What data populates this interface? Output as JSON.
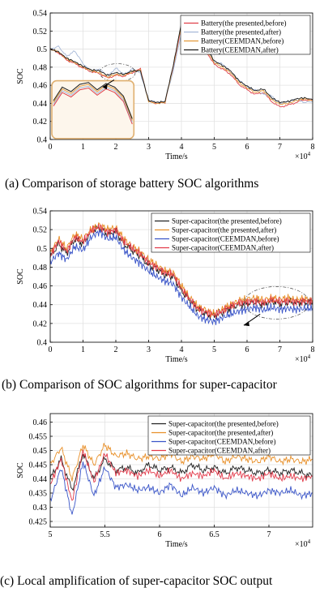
{
  "colors": {
    "battery_presented_before": "#e0404a",
    "battery_presented_after": "#a6b8d8",
    "battery_ceemdan_before": "#e39a3a",
    "battery_ceemdan_after": "#1a1a1a",
    "sc_presented_before": "#222222",
    "sc_presented_after": "#e8902a",
    "sc_ceemdan_before": "#3a55c8",
    "sc_ceemdan_after": "#e23a4a",
    "inset_border": "#e0b070",
    "inset_fill": "#fdf6ec"
  },
  "chart_data": [
    {
      "type": "line",
      "caption": "(a)   Comparison of storage battery SOC algorithms",
      "xlabel": "Time/s",
      "ylabel": "SOC",
      "xlim": [
        0,
        8
      ],
      "ylim": [
        0.4,
        0.54
      ],
      "x_multiplier": "×10^4",
      "x_multiplier_base": "×10",
      "x_multiplier_exp": "4",
      "xticks": [
        "0",
        "1",
        "2",
        "3",
        "4",
        "5",
        "6",
        "7",
        "8"
      ],
      "yticks": [
        "0.4",
        "0.42",
        "0.44",
        "0.46",
        "0.48",
        "0.5",
        "0.52",
        "0.54"
      ],
      "legend_position": "top-right",
      "grid": true,
      "x": [
        0,
        0.25,
        0.5,
        0.75,
        1.0,
        1.25,
        1.5,
        1.75,
        2.0,
        2.25,
        2.5,
        2.75,
        3.0,
        3.25,
        3.5,
        3.75,
        4.0,
        4.25,
        4.5,
        4.75,
        5.0,
        5.25,
        5.5,
        5.75,
        6.0,
        6.25,
        6.5,
        6.75,
        7.0,
        7.25,
        7.5,
        7.75,
        8.0
      ],
      "series": [
        {
          "name": "Battery(the presented,before)",
          "color_key": "battery_presented_before",
          "values": [
            0.5,
            0.496,
            0.488,
            0.484,
            0.479,
            0.475,
            0.473,
            0.468,
            0.471,
            0.47,
            0.474,
            0.478,
            0.442,
            0.44,
            0.441,
            0.48,
            0.525,
            0.52,
            0.51,
            0.498,
            0.483,
            0.478,
            0.472,
            0.461,
            0.455,
            0.45,
            0.452,
            0.442,
            0.436,
            0.438,
            0.441,
            0.444,
            0.443
          ]
        },
        {
          "name": "Battery(the presented,after)",
          "color_key": "battery_presented_after",
          "values": [
            0.5,
            0.503,
            0.492,
            0.498,
            0.484,
            0.475,
            0.478,
            0.47,
            0.479,
            0.472,
            0.478,
            0.473,
            0.444,
            0.441,
            0.442,
            0.476,
            0.518,
            0.51,
            0.5,
            0.505,
            0.485,
            0.484,
            0.474,
            0.466,
            0.458,
            0.455,
            0.45,
            0.448,
            0.44,
            0.442,
            0.444,
            0.441,
            0.442
          ]
        },
        {
          "name": "Battery(CEEMDAN,before)",
          "color_key": "battery_ceemdan_before",
          "values": [
            0.5,
            0.497,
            0.489,
            0.485,
            0.48,
            0.476,
            0.474,
            0.469,
            0.472,
            0.471,
            0.475,
            0.477,
            0.442,
            0.44,
            0.441,
            0.481,
            0.527,
            0.521,
            0.511,
            0.5,
            0.485,
            0.48,
            0.474,
            0.463,
            0.457,
            0.452,
            0.454,
            0.444,
            0.439,
            0.44,
            0.443,
            0.445,
            0.443
          ]
        },
        {
          "name": "Battery(CEEMDAN,after)",
          "color_key": "battery_ceemdan_after",
          "values": [
            0.5,
            0.497,
            0.49,
            0.486,
            0.481,
            0.477,
            0.476,
            0.471,
            0.474,
            0.472,
            0.476,
            0.476,
            0.443,
            0.441,
            0.442,
            0.482,
            0.529,
            0.522,
            0.513,
            0.502,
            0.487,
            0.482,
            0.476,
            0.465,
            0.459,
            0.454,
            0.456,
            0.446,
            0.441,
            0.442,
            0.445,
            0.446,
            0.444
          ]
        }
      ]
    },
    {
      "type": "line",
      "caption": "(b)  Comparison of SOC algorithms for super-capacitor",
      "xlabel": "Time/s",
      "ylabel": "SOC",
      "xlim": [
        0,
        8
      ],
      "ylim": [
        0.4,
        0.54
      ],
      "x_multiplier": "×10^4",
      "x_multiplier_base": "×10",
      "x_multiplier_exp": "4",
      "xticks": [
        "0",
        "1",
        "2",
        "3",
        "4",
        "5",
        "6",
        "7",
        "8"
      ],
      "yticks": [
        "0.4",
        "0.42",
        "0.44",
        "0.46",
        "0.48",
        "0.5",
        "0.52",
        "0.54"
      ],
      "legend_position": "top-right",
      "grid": true,
      "x": [
        0,
        0.25,
        0.5,
        0.75,
        1.0,
        1.25,
        1.5,
        1.75,
        2.0,
        2.25,
        2.5,
        2.75,
        3.0,
        3.25,
        3.5,
        3.75,
        4.0,
        4.25,
        4.5,
        4.75,
        5.0,
        5.25,
        5.5,
        5.75,
        6.0,
        6.25,
        6.5,
        6.75,
        7.0,
        7.25,
        7.5,
        7.75,
        8.0
      ],
      "series": [
        {
          "name": "Super-capacitor(the presented,before)",
          "color_key": "sc_presented_before",
          "values": [
            0.49,
            0.505,
            0.495,
            0.51,
            0.505,
            0.518,
            0.522,
            0.515,
            0.518,
            0.505,
            0.498,
            0.492,
            0.482,
            0.478,
            0.472,
            0.47,
            0.455,
            0.445,
            0.435,
            0.43,
            0.428,
            0.432,
            0.437,
            0.44,
            0.441,
            0.443,
            0.44,
            0.444,
            0.441,
            0.443,
            0.442,
            0.443,
            0.442
          ]
        },
        {
          "name": "Super-capacitor(the presented,after)",
          "color_key": "sc_presented_after",
          "values": [
            0.495,
            0.51,
            0.5,
            0.515,
            0.51,
            0.52,
            0.525,
            0.52,
            0.522,
            0.51,
            0.502,
            0.496,
            0.488,
            0.482,
            0.476,
            0.474,
            0.46,
            0.448,
            0.438,
            0.434,
            0.43,
            0.435,
            0.44,
            0.444,
            0.446,
            0.447,
            0.445,
            0.447,
            0.446,
            0.447,
            0.445,
            0.446,
            0.445
          ]
        },
        {
          "name": "Super-capacitor(CEEMDAN,before)",
          "color_key": "sc_ceemdan_before",
          "values": [
            0.485,
            0.495,
            0.488,
            0.502,
            0.498,
            0.512,
            0.518,
            0.51,
            0.512,
            0.498,
            0.49,
            0.484,
            0.476,
            0.47,
            0.465,
            0.462,
            0.448,
            0.438,
            0.428,
            0.424,
            0.422,
            0.426,
            0.43,
            0.433,
            0.435,
            0.437,
            0.434,
            0.437,
            0.435,
            0.436,
            0.435,
            0.436,
            0.436
          ]
        },
        {
          "name": "Super-capacitor(CEEMDAN,after)",
          "color_key": "sc_ceemdan_after",
          "values": [
            0.492,
            0.508,
            0.497,
            0.512,
            0.507,
            0.519,
            0.523,
            0.517,
            0.52,
            0.507,
            0.5,
            0.494,
            0.485,
            0.48,
            0.474,
            0.472,
            0.457,
            0.446,
            0.436,
            0.432,
            0.429,
            0.433,
            0.438,
            0.442,
            0.443,
            0.444,
            0.442,
            0.445,
            0.443,
            0.444,
            0.443,
            0.444,
            0.443
          ]
        }
      ]
    },
    {
      "type": "line",
      "caption": "(c)   Local amplification of super-capacitor SOC output",
      "xlabel": "Time/s",
      "ylabel": "SOC",
      "xlim": [
        5,
        7.4
      ],
      "ylim": [
        0.423,
        0.463
      ],
      "x_multiplier": "×10^4",
      "x_multiplier_base": "×10",
      "x_multiplier_exp": "4",
      "xticks": [
        "5",
        "5.5",
        "6",
        "6.5",
        "7"
      ],
      "xtick_values": [
        5,
        5.5,
        6,
        6.5,
        7
      ],
      "yticks": [
        "0.425",
        "0.43",
        "0.435",
        "0.44",
        "0.445",
        "0.45",
        "0.455",
        "0.46"
      ],
      "ytick_values": [
        0.425,
        0.43,
        0.435,
        0.44,
        0.445,
        0.45,
        0.455,
        0.46
      ],
      "legend_position": "top-right",
      "grid": true,
      "x": [
        5.0,
        5.1,
        5.2,
        5.3,
        5.4,
        5.5,
        5.6,
        5.7,
        5.8,
        5.9,
        6.0,
        6.1,
        6.2,
        6.3,
        6.4,
        6.5,
        6.6,
        6.7,
        6.8,
        6.9,
        7.0,
        7.1,
        7.2,
        7.3,
        7.4
      ],
      "series": [
        {
          "name": "Super-capacitor(the presented,before)",
          "color_key": "sc_presented_before",
          "values": [
            0.44,
            0.447,
            0.436,
            0.449,
            0.44,
            0.447,
            0.443,
            0.444,
            0.442,
            0.445,
            0.443,
            0.444,
            0.442,
            0.445,
            0.443,
            0.444,
            0.442,
            0.444,
            0.443,
            0.442,
            0.443,
            0.442,
            0.443,
            0.442,
            0.441
          ]
        },
        {
          "name": "Super-capacitor(the presented,after)",
          "color_key": "sc_presented_after",
          "values": [
            0.445,
            0.451,
            0.44,
            0.452,
            0.445,
            0.452,
            0.448,
            0.449,
            0.447,
            0.448,
            0.447,
            0.449,
            0.446,
            0.448,
            0.447,
            0.449,
            0.446,
            0.448,
            0.447,
            0.446,
            0.448,
            0.446,
            0.447,
            0.446,
            0.447
          ]
        },
        {
          "name": "Super-capacitor(CEEMDAN,before)",
          "color_key": "sc_ceemdan_before",
          "values": [
            0.432,
            0.444,
            0.427,
            0.446,
            0.434,
            0.444,
            0.437,
            0.438,
            0.436,
            0.437,
            0.435,
            0.438,
            0.434,
            0.437,
            0.435,
            0.437,
            0.434,
            0.436,
            0.435,
            0.434,
            0.436,
            0.435,
            0.436,
            0.434,
            0.435
          ]
        },
        {
          "name": "Super-capacitor(CEEMDAN,after)",
          "color_key": "sc_ceemdan_after",
          "values": [
            0.438,
            0.447,
            0.432,
            0.45,
            0.439,
            0.449,
            0.442,
            0.443,
            0.441,
            0.443,
            0.441,
            0.443,
            0.44,
            0.442,
            0.441,
            0.443,
            0.44,
            0.442,
            0.441,
            0.44,
            0.442,
            0.44,
            0.441,
            0.44,
            0.441
          ]
        }
      ]
    }
  ]
}
